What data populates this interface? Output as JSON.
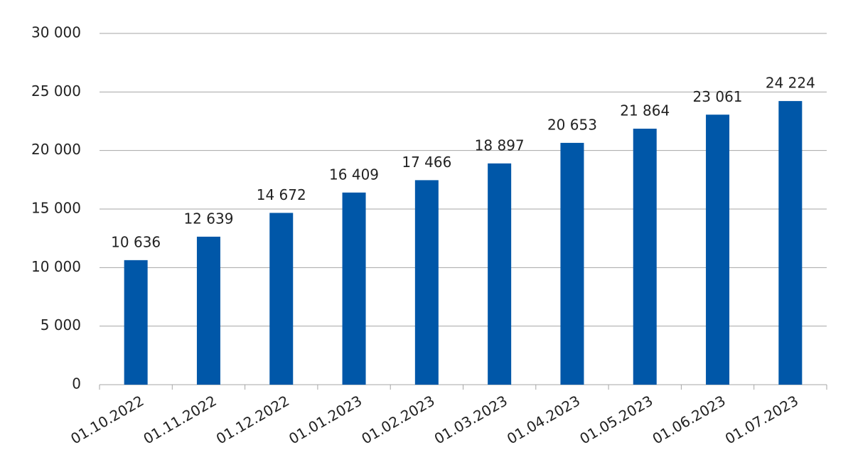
{
  "chart_data": {
    "type": "bar",
    "categories": [
      "01.10.2022",
      "01.11.2022",
      "01.12.2022",
      "01.01.2023",
      "01.02.2023",
      "01.03.2023",
      "01.04.2023",
      "01.05.2023",
      "01.06.2023",
      "01.07.2023"
    ],
    "values": [
      10636,
      12639,
      14672,
      16409,
      17466,
      18897,
      20653,
      21864,
      23061,
      24224
    ],
    "value_labels": [
      "10 636",
      "12 639",
      "14 672",
      "16 409",
      "17 466",
      "18 897",
      "20 653",
      "21 864",
      "23 061",
      "24 224"
    ],
    "color": "#0057a8",
    "ylim": [
      0,
      30000
    ],
    "yticks": [
      0,
      {
        "value": 5000,
        "label": "5 000"
      },
      {
        "value": 10000,
        "label": "10 000"
      },
      {
        "value": 15000,
        "label": "15 000"
      },
      {
        "value": 20000,
        "label": "20 000"
      },
      {
        "value": 25000,
        "label": "25 000"
      },
      {
        "value": 30000,
        "label": "30 000"
      }
    ],
    "grid": true
  }
}
